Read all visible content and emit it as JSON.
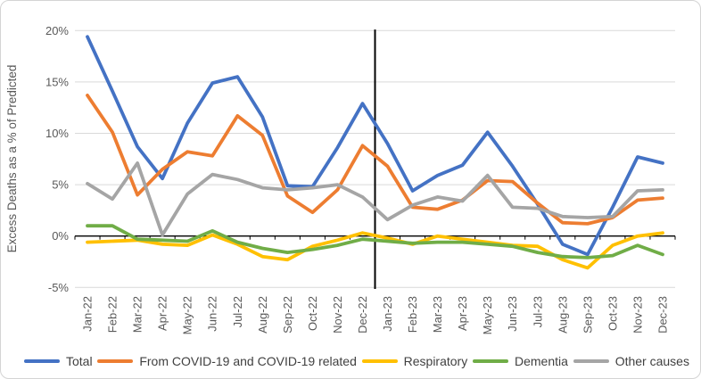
{
  "chart_data": {
    "type": "line",
    "title": "",
    "xlabel": "",
    "ylabel": "Excess Deaths as a % of Predicted",
    "y_ticks": [
      "20%",
      "15%",
      "10%",
      "5%",
      "0%",
      "-5%"
    ],
    "ylim": [
      -5,
      20
    ],
    "grid": true,
    "legend_position": "bottom",
    "vertical_divider_between": [
      "Dec-22",
      "Jan-23"
    ],
    "gridline_color": "#D9D9D9",
    "axis_text_color": "#595959",
    "legend_text_color": "#404040",
    "x_categories": [
      "Jan-22",
      "Feb-22",
      "Mar-22",
      "Apr-22",
      "May-22",
      "Jun-22",
      "Jul-22",
      "Aug-22",
      "Sep-22",
      "Oct-22",
      "Nov-22",
      "Dec-22",
      "Jan-23",
      "Feb-23",
      "Mar-23",
      "Apr-23",
      "May-23",
      "Jun-23",
      "Jul-23",
      "Aug-23",
      "Sep-23",
      "Oct-23",
      "Nov-23",
      "Dec-23"
    ],
    "series": [
      {
        "name": "Total",
        "color": "#4472C4",
        "values": [
          19.4,
          14.1,
          8.7,
          5.6,
          11.0,
          14.9,
          15.5,
          11.6,
          4.9,
          4.8,
          8.6,
          12.9,
          9.0,
          4.4,
          5.9,
          6.9,
          10.1,
          6.8,
          3.1,
          -0.8,
          -1.8,
          2.8,
          7.7,
          7.1
        ]
      },
      {
        "name": "From COVID-19 and COVID-19 related",
        "color": "#ED7D31",
        "values": [
          13.7,
          10.1,
          4.0,
          6.5,
          8.2,
          7.8,
          11.7,
          9.8,
          3.9,
          2.3,
          4.5,
          8.8,
          6.8,
          2.8,
          2.6,
          3.5,
          5.4,
          5.3,
          3.2,
          1.3,
          1.2,
          1.8,
          3.5,
          3.7
        ]
      },
      {
        "name": "Respiratory",
        "color": "#FFC000",
        "values": [
          -0.6,
          -0.5,
          -0.4,
          -0.8,
          -0.9,
          0.1,
          -0.8,
          -2.0,
          -2.3,
          -1.0,
          -0.4,
          0.3,
          -0.2,
          -0.8,
          0.0,
          -0.3,
          -0.6,
          -0.9,
          -1.0,
          -2.3,
          -3.1,
          -0.9,
          0.0,
          0.3
        ]
      },
      {
        "name": "Dementia",
        "color": "#70AD47",
        "values": [
          1.0,
          1.0,
          -0.3,
          -0.4,
          -0.5,
          0.5,
          -0.6,
          -1.2,
          -1.6,
          -1.3,
          -0.9,
          -0.3,
          -0.5,
          -0.7,
          -0.6,
          -0.6,
          -0.8,
          -1.0,
          -1.6,
          -2.0,
          -2.1,
          -1.9,
          -0.9,
          -1.8
        ]
      },
      {
        "name": "Other causes",
        "color": "#A5A5A5",
        "values": [
          5.1,
          3.6,
          7.1,
          0.1,
          4.1,
          6.0,
          5.5,
          4.7,
          4.5,
          4.7,
          5.0,
          3.8,
          1.6,
          3.0,
          3.8,
          3.4,
          5.9,
          2.8,
          2.7,
          1.9,
          1.8,
          1.9,
          4.4,
          4.5
        ]
      }
    ]
  }
}
